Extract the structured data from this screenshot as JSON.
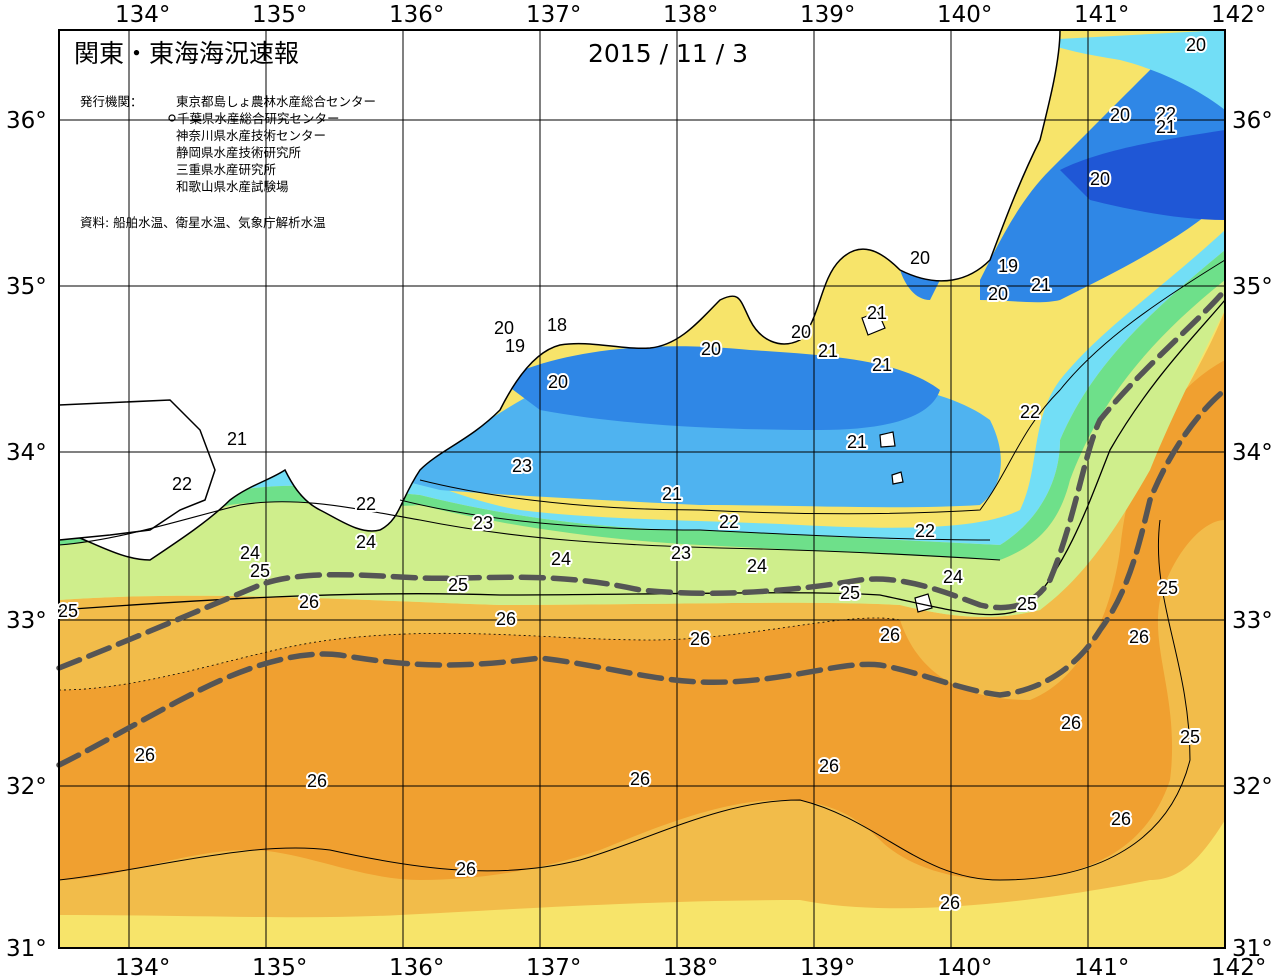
{
  "title": "関東・東海海況速報",
  "date": "2015 / 11 / 3",
  "publisher_label": "発行機関：",
  "publishers": [
    "東京都島しょ農林水産総合センター",
    "千葉県水産総合研究センター",
    "神奈川県水産技術センター",
    "静岡県水産技術研究所",
    "三重県水産研究所",
    "和歌山県水産試験場"
  ],
  "source": "資料: 船舶水温、衛星水温、気象庁解析水温",
  "axes": {
    "lon_labels": [
      "134°",
      "135°",
      "136°",
      "137°",
      "138°",
      "139°",
      "140°",
      "141°",
      "142°"
    ],
    "lat_labels": [
      "36°",
      "35°",
      "34°",
      "33°",
      "32°",
      "31°"
    ]
  },
  "colors": {
    "t18": "#7b3fd0",
    "t19": "#1f57d6",
    "t20": "#2f87e6",
    "t21": "#4fb3f0",
    "t22": "#72def6",
    "t23": "#6ee08a",
    "t24": "#cfee8c",
    "t25": "#f7e46a",
    "t26": "#f2bc4a",
    "t27": "#f0a030",
    "land": "#ffffff",
    "coast": "#000000",
    "kuroshio": "#555555"
  },
  "isotherm_labels": [
    {
      "t": "20"
    },
    {
      "t": "22"
    },
    {
      "t": "21"
    },
    {
      "t": "20"
    },
    {
      "t": "20"
    },
    {
      "t": "20"
    },
    {
      "t": "19"
    },
    {
      "t": "20"
    },
    {
      "t": "21"
    },
    {
      "t": "20"
    },
    {
      "t": "18"
    },
    {
      "t": "19"
    },
    {
      "t": "20"
    },
    {
      "t": "20"
    },
    {
      "t": "20"
    },
    {
      "t": "21"
    },
    {
      "t": "21"
    },
    {
      "t": "21"
    },
    {
      "t": "21"
    },
    {
      "t": "22"
    },
    {
      "t": "21"
    },
    {
      "t": "22"
    },
    {
      "t": "23"
    },
    {
      "t": "22"
    },
    {
      "t": "21"
    },
    {
      "t": "22"
    },
    {
      "t": "23"
    },
    {
      "t": "22"
    },
    {
      "t": "24"
    },
    {
      "t": "24"
    },
    {
      "t": "24"
    },
    {
      "t": "24"
    },
    {
      "t": "23"
    },
    {
      "t": "24"
    },
    {
      "t": "25"
    },
    {
      "t": "25"
    },
    {
      "t": "25"
    },
    {
      "t": "25"
    },
    {
      "t": "25"
    },
    {
      "t": "26"
    },
    {
      "t": "26"
    },
    {
      "t": "26"
    },
    {
      "t": "26"
    },
    {
      "t": "26"
    },
    {
      "t": "26"
    },
    {
      "t": "26"
    },
    {
      "t": "26"
    },
    {
      "t": "26"
    },
    {
      "t": "26"
    },
    {
      "t": "26"
    },
    {
      "t": "25"
    },
    {
      "t": "26"
    },
    {
      "t": "26"
    },
    {
      "t": "25"
    }
  ]
}
